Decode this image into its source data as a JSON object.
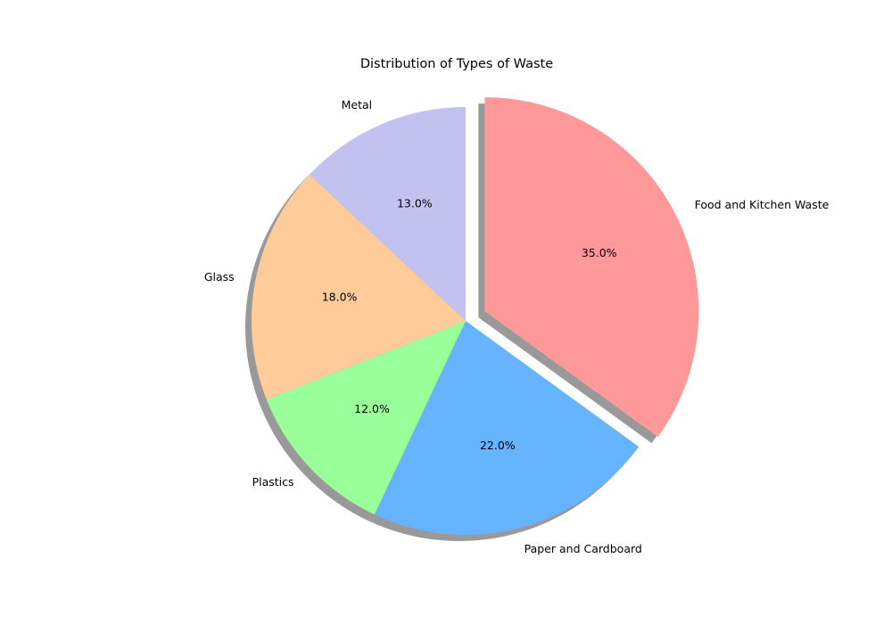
{
  "chart_data": {
    "type": "pie",
    "title": "Distribution of Types of Waste",
    "start_angle_deg": 90,
    "direction": "clockwise",
    "shadow": true,
    "slices": [
      {
        "label": "Food and Kitchen Waste",
        "value": 35,
        "percent_label": "35.0%",
        "color": "#ff9999",
        "explode": 0.1
      },
      {
        "label": "Paper and Cardboard",
        "value": 22,
        "percent_label": "22.0%",
        "color": "#66b3ff",
        "explode": 0
      },
      {
        "label": "Plastics",
        "value": 12,
        "percent_label": "12.0%",
        "color": "#99ff99",
        "explode": 0
      },
      {
        "label": "Glass",
        "value": 18,
        "percent_label": "18.0%",
        "color": "#ffcc99",
        "explode": 0
      },
      {
        "label": "Metal",
        "value": 13,
        "percent_label": "13.0%",
        "color": "#c2c2f0",
        "explode": 0
      }
    ]
  }
}
